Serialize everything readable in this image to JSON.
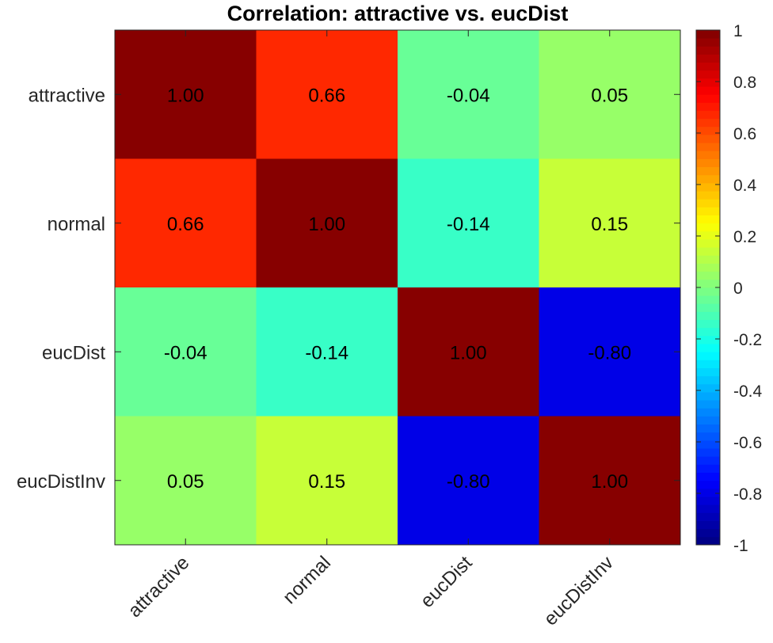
{
  "chart_data": {
    "type": "heatmap",
    "title": "Correlation: attractive vs. eucDist",
    "x_categories": [
      "attractive",
      "normal",
      "eucDist",
      "eucDistInv"
    ],
    "y_categories": [
      "attractive",
      "normal",
      "eucDist",
      "eucDistInv"
    ],
    "values": [
      [
        1.0,
        0.66,
        -0.04,
        0.05
      ],
      [
        0.66,
        1.0,
        -0.14,
        0.15
      ],
      [
        -0.04,
        -0.14,
        1.0,
        -0.8
      ],
      [
        0.05,
        0.15,
        -0.8,
        1.0
      ]
    ],
    "cell_labels": [
      [
        "1.00",
        "0.66",
        "-0.04",
        "0.05"
      ],
      [
        "0.66",
        "1.00",
        "-0.14",
        "0.15"
      ],
      [
        "-0.04",
        "-0.14",
        "1.00",
        "-0.80"
      ],
      [
        "0.05",
        "0.15",
        "-0.80",
        "1.00"
      ]
    ],
    "colormap": "jet",
    "clim": [
      -1,
      1
    ],
    "colorbar_ticks": [
      1,
      0.8,
      0.6,
      0.4,
      0.2,
      0,
      -0.2,
      -0.4,
      -0.6,
      -0.8,
      -1
    ],
    "colorbar_tick_labels": [
      "1",
      "0.8",
      "0.6",
      "0.4",
      "0.2",
      "0",
      "-0.2",
      "-0.4",
      "-0.6",
      "-0.8",
      "-1"
    ],
    "colorbar_position": "right",
    "x_tick_rotation_deg": 45,
    "grid": false
  }
}
